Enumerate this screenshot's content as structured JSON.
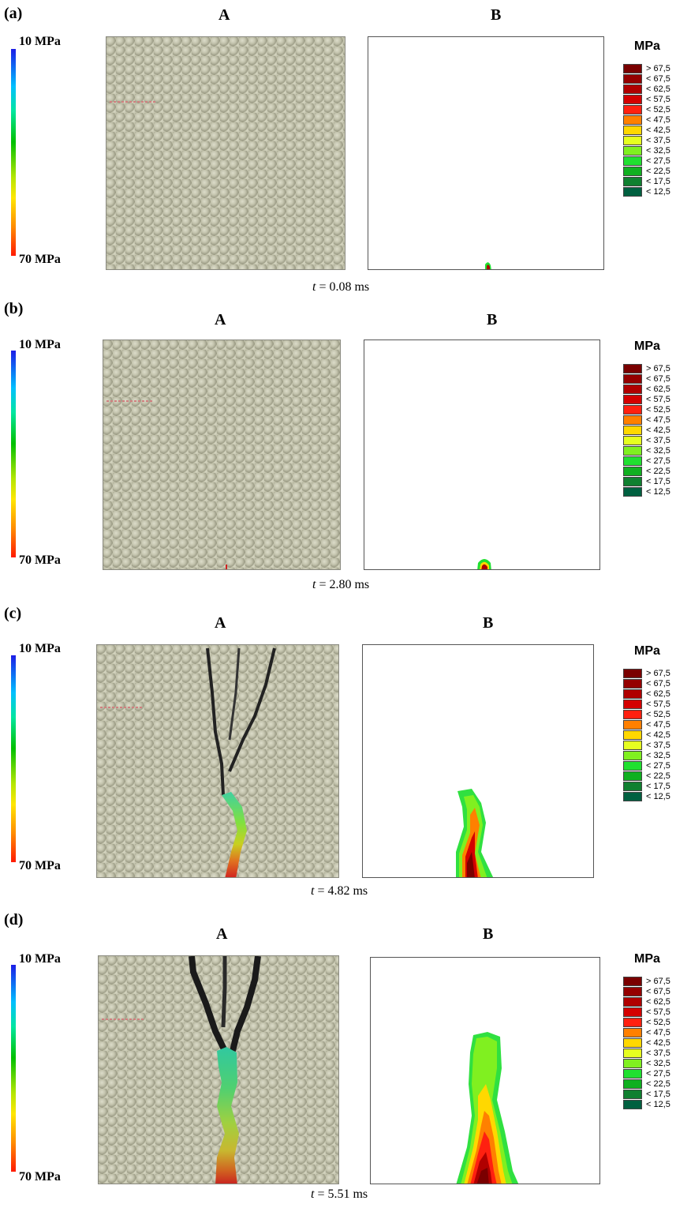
{
  "col_a": "A",
  "col_b": "B",
  "colorbar": {
    "top": "10 MPa",
    "bottom": "70 MPa"
  },
  "legend": {
    "title": "MPa",
    "items": [
      {
        "label": "> 67,5",
        "color": "#7a0000"
      },
      {
        "label": "< 67,5",
        "color": "#950000"
      },
      {
        "label": "< 62,5",
        "color": "#b00000"
      },
      {
        "label": "< 57,5",
        "color": "#d40000"
      },
      {
        "label": "< 52,5",
        "color": "#ff2010"
      },
      {
        "label": "< 47,5",
        "color": "#ff8000"
      },
      {
        "label": "< 42,5",
        "color": "#ffd800"
      },
      {
        "label": "< 37,5",
        "color": "#e6ff20"
      },
      {
        "label": "< 32,5",
        "color": "#80f020"
      },
      {
        "label": "< 27,5",
        "color": "#20e030"
      },
      {
        "label": "< 22,5",
        "color": "#10b020"
      },
      {
        "label": "< 17,5",
        "color": "#108030"
      },
      {
        "label": "< 12,5",
        "color": "#006040"
      }
    ]
  },
  "panels": [
    {
      "label": "(a)",
      "time_var": "t",
      "time_value": "= 0.08 ms"
    },
    {
      "label": "(b)",
      "time_var": "t",
      "time_value": "= 2.80 ms"
    },
    {
      "label": "(c)",
      "time_var": "t",
      "time_value": "= 4.82 ms"
    },
    {
      "label": "(d)",
      "time_var": "t",
      "time_value": "= 5.51 ms"
    }
  ]
}
